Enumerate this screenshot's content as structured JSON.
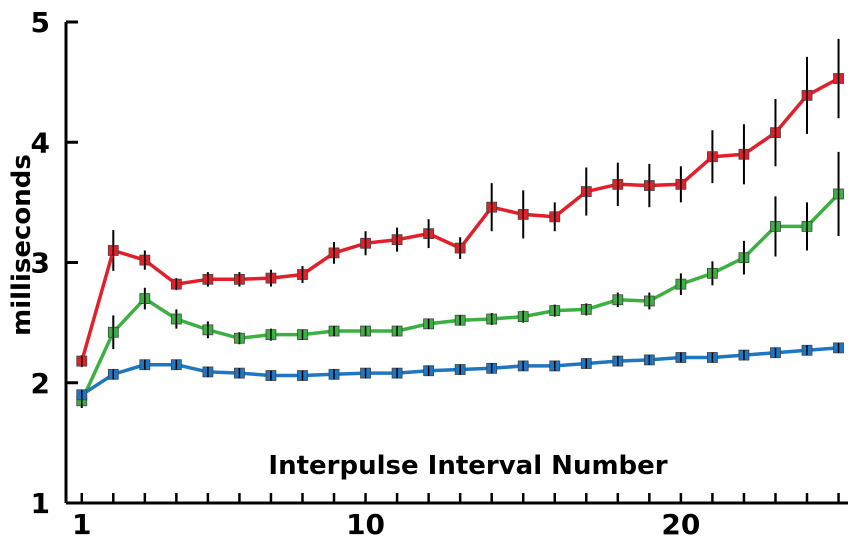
{
  "chart_data": {
    "type": "line",
    "title": "",
    "xlabel": "Interpulse Interval Number",
    "ylabel": "milliseconds",
    "xlim": [
      0.5,
      25.3
    ],
    "ylim": [
      1,
      5
    ],
    "x_ticks": [
      1,
      10,
      20
    ],
    "y_ticks": [
      1,
      2,
      3,
      4,
      5
    ],
    "grid": false,
    "legend": "none",
    "x": [
      1,
      2,
      3,
      4,
      5,
      6,
      7,
      8,
      9,
      10,
      11,
      12,
      13,
      14,
      15,
      16,
      17,
      18,
      19,
      20,
      21,
      22,
      23,
      24,
      25
    ],
    "series": [
      {
        "color": "#e0202a",
        "values": [
          2.18,
          3.1,
          3.02,
          2.82,
          2.86,
          2.86,
          2.87,
          2.9,
          3.08,
          3.16,
          3.19,
          3.24,
          3.12,
          3.46,
          3.4,
          3.38,
          3.59,
          3.65,
          3.64,
          3.65,
          3.88,
          3.9,
          4.08,
          4.39,
          4.53
        ],
        "errors": [
          0.05,
          0.17,
          0.08,
          0.05,
          0.06,
          0.06,
          0.07,
          0.07,
          0.09,
          0.1,
          0.1,
          0.12,
          0.09,
          0.2,
          0.2,
          0.12,
          0.2,
          0.18,
          0.18,
          0.15,
          0.22,
          0.25,
          0.28,
          0.32,
          0.33
        ]
      },
      {
        "color": "#3cb043",
        "values": [
          1.85,
          2.42,
          2.7,
          2.53,
          2.44,
          2.37,
          2.4,
          2.4,
          2.43,
          2.43,
          2.43,
          2.49,
          2.52,
          2.53,
          2.55,
          2.6,
          2.61,
          2.69,
          2.68,
          2.82,
          2.91,
          3.04,
          3.3,
          3.3,
          3.57
        ],
        "errors": [
          0.06,
          0.14,
          0.09,
          0.08,
          0.07,
          0.05,
          0.05,
          0.04,
          0.04,
          0.04,
          0.04,
          0.04,
          0.04,
          0.05,
          0.05,
          0.05,
          0.05,
          0.06,
          0.07,
          0.09,
          0.1,
          0.14,
          0.25,
          0.2,
          0.35
        ]
      },
      {
        "color": "#1f77c4",
        "values": [
          1.9,
          2.07,
          2.15,
          2.15,
          2.09,
          2.08,
          2.06,
          2.06,
          2.07,
          2.08,
          2.08,
          2.1,
          2.11,
          2.12,
          2.14,
          2.14,
          2.16,
          2.18,
          2.19,
          2.21,
          2.21,
          2.23,
          2.25,
          2.27,
          2.29
        ],
        "errors": [
          0.03,
          0.02,
          0.02,
          0.02,
          0.02,
          0.02,
          0.02,
          0.02,
          0.02,
          0.02,
          0.02,
          0.02,
          0.02,
          0.02,
          0.02,
          0.02,
          0.02,
          0.02,
          0.02,
          0.02,
          0.02,
          0.02,
          0.02,
          0.02,
          0.02
        ]
      }
    ]
  }
}
